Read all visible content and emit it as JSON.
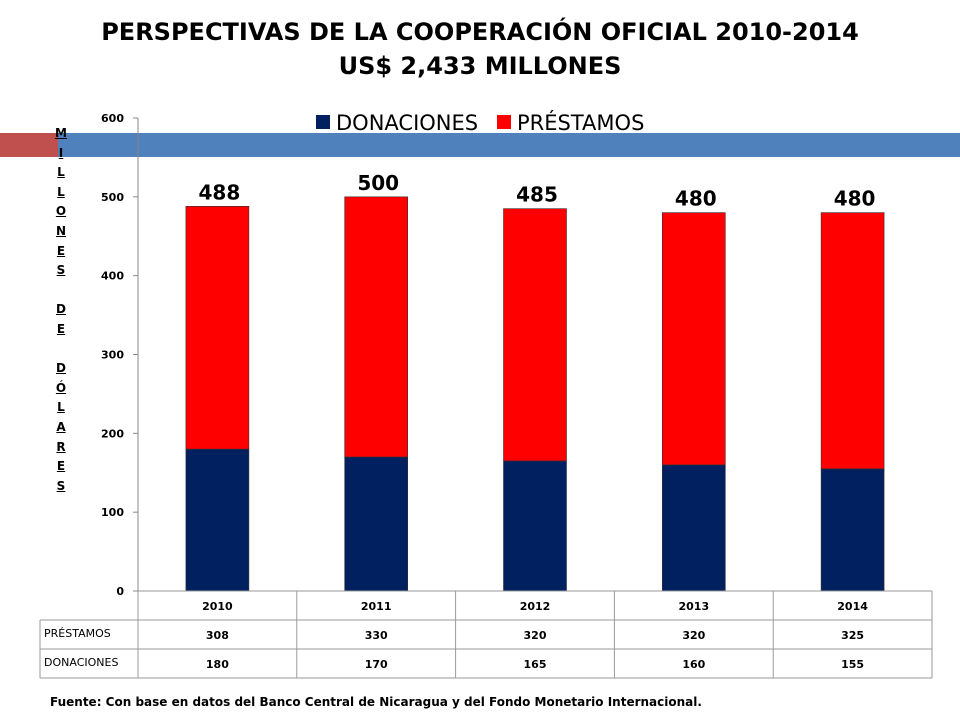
{
  "title_line1": "PERSPECTIVAS DE LA COOPERACIÓN OFICIAL 2010-2014",
  "title_line2": "US$ 2,433 MILLONES",
  "ylabel_text": "M\nI\nL\nL\nO\nN\nE\nS\n\nD\nE\n\nD\nÓ\nL\nA\nR\nE\nS",
  "source": "Fuente: Con base en datos del Banco Central de Nicaragua y del Fondo Monetario Internacional.",
  "colors": {
    "donaciones": "#002060",
    "prestamos": "#ff0000",
    "accent_red": "#c0504d",
    "accent_blue": "#4f81bd"
  },
  "chart_data": {
    "type": "bar",
    "stacked": true,
    "categories": [
      "2010",
      "2011",
      "2012",
      "2013",
      "2014"
    ],
    "series": [
      {
        "name": "DONACIONES",
        "values": [
          180,
          170,
          165,
          160,
          155
        ]
      },
      {
        "name": "PRÉSTAMOS",
        "values": [
          308,
          330,
          320,
          320,
          325
        ]
      }
    ],
    "totals": [
      "488",
      "500",
      "485",
      "480",
      "480"
    ],
    "yticks": [
      "0",
      "100",
      "200",
      "300",
      "400",
      "500",
      "600"
    ],
    "ylim": [
      0,
      600
    ],
    "legend_position": "top",
    "table_rows": [
      {
        "label": "PRÉSTAMOS",
        "values": [
          "308",
          "330",
          "320",
          "320",
          "325"
        ]
      },
      {
        "label": "DONACIONES",
        "values": [
          "180",
          "170",
          "165",
          "160",
          "155"
        ]
      }
    ]
  }
}
